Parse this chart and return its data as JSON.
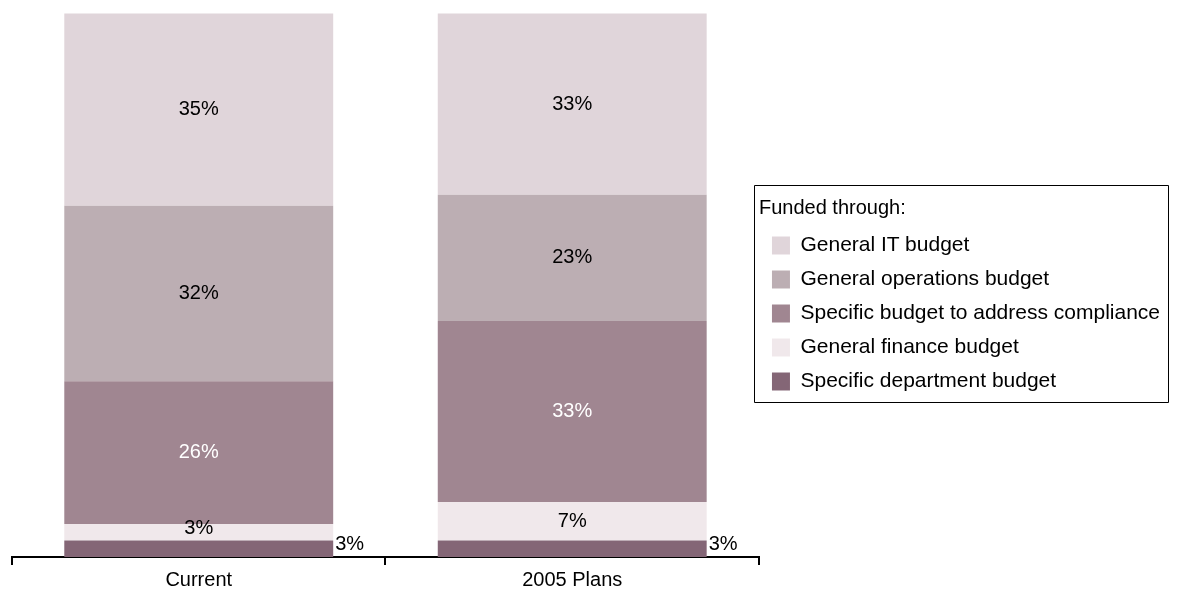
{
  "chart_data": {
    "type": "bar",
    "stacked": true,
    "categories": [
      "Current",
      "2005 Plans"
    ],
    "series": [
      {
        "name": "Specific department budget",
        "color": "#846676",
        "values": [
          3,
          3
        ],
        "value_labels": [
          "3%",
          "3%"
        ]
      },
      {
        "name": "General finance budget",
        "color": "#f0e8eb",
        "values": [
          3,
          7
        ],
        "value_labels": [
          "3%",
          "7%"
        ]
      },
      {
        "name": "Specific budget to address compliance",
        "color": "#a08691",
        "values": [
          26,
          33
        ],
        "value_labels": [
          "26%",
          "33%"
        ]
      },
      {
        "name": "General operations budget",
        "color": "#bcaeb3",
        "values": [
          32,
          23
        ],
        "value_labels": [
          "32%",
          "23%"
        ]
      },
      {
        "name": "General IT budget",
        "color": "#e0d5da",
        "values": [
          35,
          33
        ],
        "value_labels": [
          "35%",
          "33%"
        ]
      }
    ],
    "legend_title": "Funded through:",
    "legend": "right"
  }
}
